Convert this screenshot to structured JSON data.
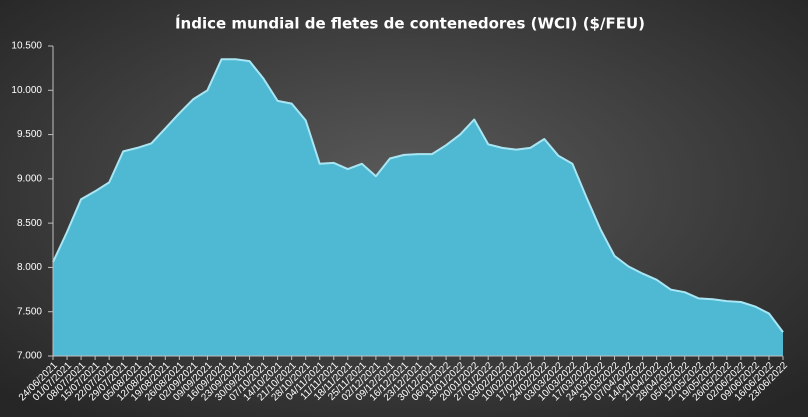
{
  "chart_data": {
    "type": "area",
    "title": "Índice mundial de fletes de contenedores (WCI) ($/FEU)",
    "categories": [
      "24/06/2021",
      "01/07/2021",
      "08/07/2021",
      "15/07/2021",
      "22/07/2021",
      "29/07/2021",
      "05/08/2021",
      "12/08/2021",
      "19/08/2021",
      "26/08/2021",
      "02/09/2021",
      "09/09/2021",
      "16/09/2021",
      "23/09/2021",
      "30/09/2021",
      "07/10/2021",
      "14/10/2021",
      "21/10/2021",
      "28/10/2021",
      "04/11/2021",
      "11/11/2021",
      "18/11/2021",
      "25/11/2021",
      "02/12/2021",
      "09/12/2021",
      "16/12/2021",
      "23/12/2021",
      "30/12/2021",
      "06/01/2022",
      "13/01/2022",
      "20/01/2022",
      "27/01/2022",
      "03/02/2022",
      "10/02/2022",
      "17/02/2022",
      "24/02/2022",
      "03/03/2022",
      "10/03/2022",
      "17/03/2022",
      "24/03/2022",
      "31/03/2022",
      "07/04/2022",
      "14/04/2022",
      "21/04/2022",
      "28/04/2022",
      "05/05/2022",
      "12/05/2022",
      "19/05/2022",
      "26/05/2022",
      "02/06/2022",
      "09/06/2022",
      "16/06/2022",
      "23/06/2022"
    ],
    "values": [
      8060,
      8400,
      8770,
      8860,
      8960,
      9310,
      9350,
      9400,
      9570,
      9740,
      9900,
      10000,
      10350,
      10350,
      10330,
      10130,
      9880,
      9850,
      9660,
      9170,
      9180,
      9110,
      9170,
      9030,
      9230,
      9270,
      9280,
      9280,
      9380,
      9500,
      9670,
      9390,
      9350,
      9330,
      9350,
      9450,
      9260,
      9170,
      8790,
      8430,
      8130,
      8010,
      7930,
      7860,
      7750,
      7720,
      7650,
      7640,
      7620,
      7610,
      7560,
      7480,
      7270
    ],
    "color": "#4fb8d3",
    "line_color": "#a8e6f4",
    "ylim": [
      7000,
      10500
    ],
    "yticks": [
      {
        "value": 7000,
        "label": "7.000"
      },
      {
        "value": 7500,
        "label": "7.500"
      },
      {
        "value": 8000,
        "label": "8.000"
      },
      {
        "value": 8500,
        "label": "8.500"
      },
      {
        "value": 9000,
        "label": "9.000"
      },
      {
        "value": 9500,
        "label": "9.500"
      },
      {
        "value": 10000,
        "label": "10.000"
      },
      {
        "value": 10500,
        "label": "10.500"
      }
    ],
    "grid": false
  }
}
